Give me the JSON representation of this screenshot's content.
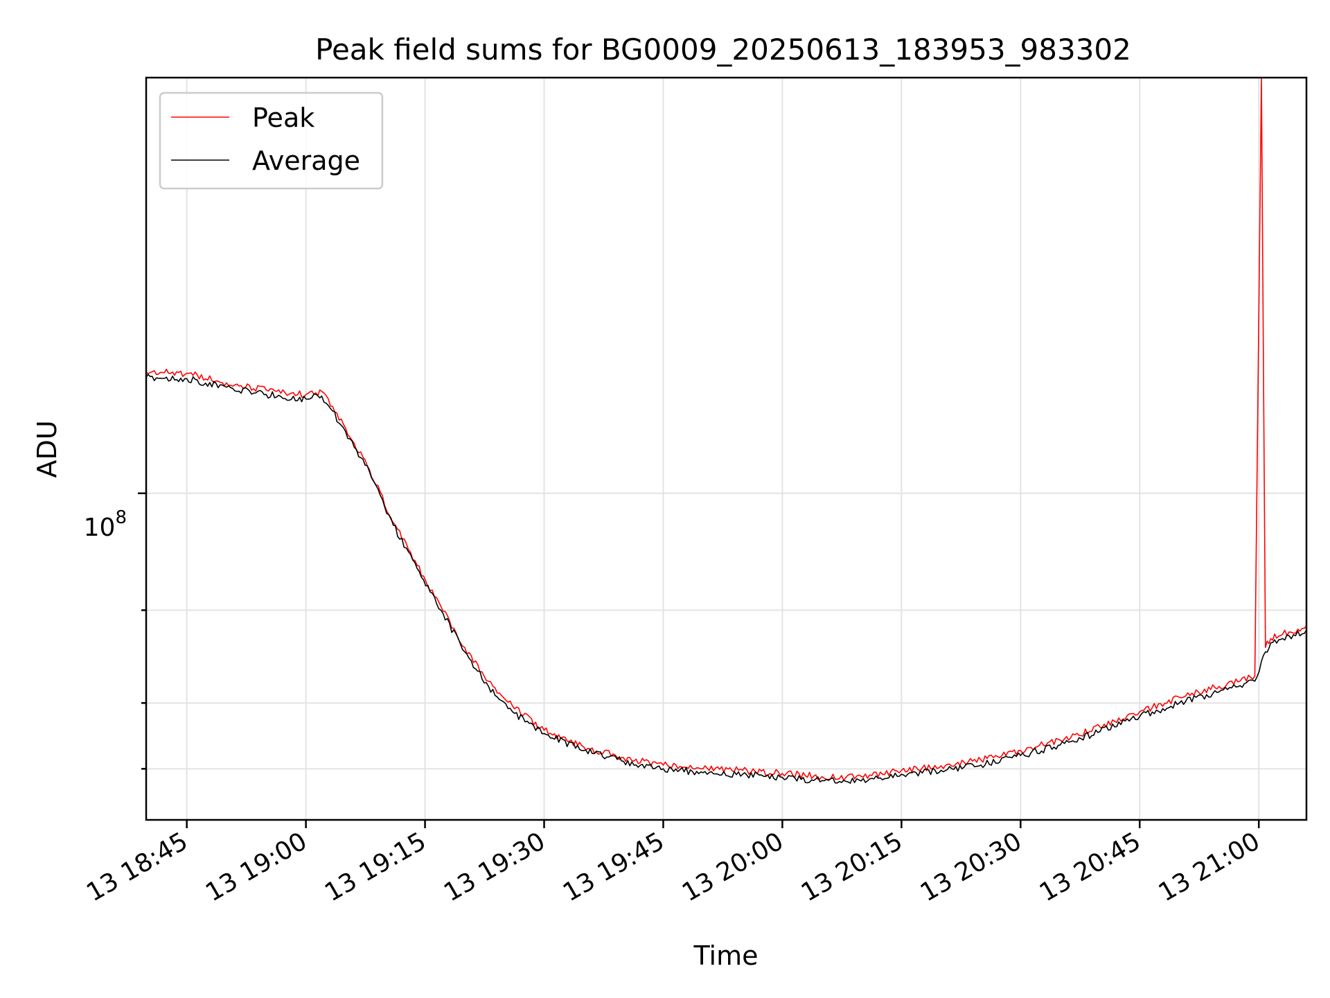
{
  "chart_data": {
    "type": "line",
    "title": "Peak field sums for BG0009_20250613_183953_983302",
    "xlabel": "Time",
    "ylabel": "ADU",
    "x_axis_type": "datetime",
    "y_scale": "log",
    "xlim": [
      "2025-06-13 18:39:53",
      "2025-06-13 21:06:00"
    ],
    "ylim": [
      24000000,
      615000000
    ],
    "x_ticks": [
      "2025-06-13 18:45",
      "2025-06-13 19:00",
      "2025-06-13 19:15",
      "2025-06-13 19:30",
      "2025-06-13 19:45",
      "2025-06-13 20:00",
      "2025-06-13 20:15",
      "2025-06-13 20:30",
      "2025-06-13 20:45",
      "2025-06-13 21:00"
    ],
    "x_tick_labels": [
      "13 18:45",
      "13 19:00",
      "13 19:15",
      "13 19:30",
      "13 19:45",
      "13 20:00",
      "13 20:15",
      "13 20:30",
      "13 20:45",
      "13 21:00"
    ],
    "y_major_ticks": [
      100000000
    ],
    "y_major_tick_labels": [
      "10^8"
    ],
    "y_minor_ticks": [
      30000000,
      40000000,
      60000000
    ],
    "grid": true,
    "legend_position": "upper-left",
    "series": [
      {
        "name": "Peak",
        "color": "#ff0000",
        "x": [
          "2025-06-13 18:39:53",
          "2025-06-13 18:45",
          "2025-06-13 18:50",
          "2025-06-13 18:55",
          "2025-06-13 19:00",
          "2025-06-13 19:02",
          "2025-06-13 19:05",
          "2025-06-13 19:08",
          "2025-06-13 19:11",
          "2025-06-13 19:14",
          "2025-06-13 19:17",
          "2025-06-13 19:20",
          "2025-06-13 19:23",
          "2025-06-13 19:26",
          "2025-06-13 19:30",
          "2025-06-13 19:35",
          "2025-06-13 19:40",
          "2025-06-13 19:45",
          "2025-06-13 19:50",
          "2025-06-13 19:55",
          "2025-06-13 20:00",
          "2025-06-13 20:05",
          "2025-06-13 20:08",
          "2025-06-13 20:11",
          "2025-06-13 20:15",
          "2025-06-13 20:20",
          "2025-06-13 20:25",
          "2025-06-13 20:30",
          "2025-06-13 20:35",
          "2025-06-13 20:40",
          "2025-06-13 20:45",
          "2025-06-13 20:50",
          "2025-06-13 20:55",
          "2025-06-13 20:59:30",
          "2025-06-13 21:00:20",
          "2025-06-13 21:00:50",
          "2025-06-13 21:01:30",
          "2025-06-13 21:03",
          "2025-06-13 21:06"
        ],
        "y": [
          170000000,
          169000000,
          162000000,
          157000000,
          154000000,
          156000000,
          133000000,
          111000000,
          88000000,
          73000000,
          61000000,
          51000000,
          44000000,
          39500000,
          35500000,
          33000000,
          31500000,
          30500000,
          30000000,
          29800000,
          29400000,
          29000000,
          28900000,
          29200000,
          29800000,
          30400000,
          31200000,
          32500000,
          34000000,
          36000000,
          38500000,
          41000000,
          43000000,
          45000000,
          615000000,
          51000000,
          53000000,
          54000000,
          56000000
        ]
      },
      {
        "name": "Average",
        "color": "#000000",
        "x": [
          "2025-06-13 18:39:53",
          "2025-06-13 18:45",
          "2025-06-13 18:50",
          "2025-06-13 18:55",
          "2025-06-13 19:00",
          "2025-06-13 19:02",
          "2025-06-13 19:05",
          "2025-06-13 19:08",
          "2025-06-13 19:11",
          "2025-06-13 19:14",
          "2025-06-13 19:17",
          "2025-06-13 19:20",
          "2025-06-13 19:23",
          "2025-06-13 19:26",
          "2025-06-13 19:30",
          "2025-06-13 19:35",
          "2025-06-13 19:40",
          "2025-06-13 19:45",
          "2025-06-13 19:50",
          "2025-06-13 19:55",
          "2025-06-13 20:00",
          "2025-06-13 20:05",
          "2025-06-13 20:08",
          "2025-06-13 20:11",
          "2025-06-13 20:15",
          "2025-06-13 20:20",
          "2025-06-13 20:25",
          "2025-06-13 20:30",
          "2025-06-13 20:35",
          "2025-06-13 20:40",
          "2025-06-13 20:45",
          "2025-06-13 20:50",
          "2025-06-13 20:55",
          "2025-06-13 20:59:30",
          "2025-06-13 21:00:20",
          "2025-06-13 21:00:50",
          "2025-06-13 21:01:30",
          "2025-06-13 21:03",
          "2025-06-13 21:06"
        ],
        "y": [
          166000000,
          165000000,
          159000000,
          154000000,
          151000000,
          153000000,
          131000000,
          110000000,
          87000000,
          72000000,
          60000000,
          50000000,
          43000000,
          38500000,
          35000000,
          32500000,
          31000000,
          30000000,
          29500000,
          29300000,
          28900000,
          28500000,
          28400000,
          28700000,
          29300000,
          29800000,
          30500000,
          31800000,
          33300000,
          35300000,
          37700000,
          40000000,
          42000000,
          44000000,
          48000000,
          50000000,
          52000000,
          53000000,
          55000000
        ]
      }
    ]
  },
  "legend": {
    "items": [
      {
        "label": "Peak",
        "color": "#ff0000"
      },
      {
        "label": "Average",
        "color": "#000000"
      }
    ]
  },
  "tick_text": {
    "y_major_base": "10",
    "y_major_exp": "8"
  }
}
